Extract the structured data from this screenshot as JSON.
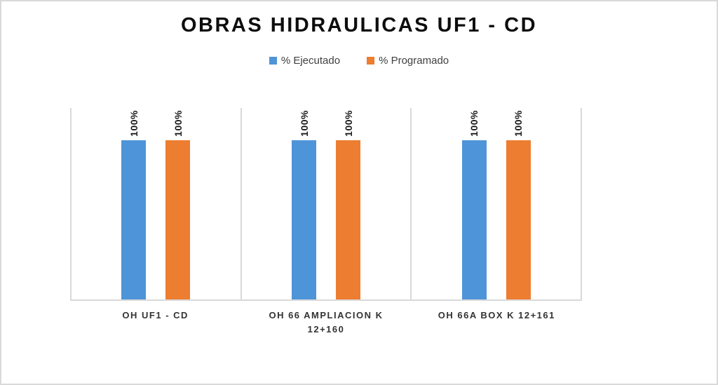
{
  "window": {
    "background": "#ffffff",
    "frame_border_color": "#d9d9d9",
    "gridline_color": "#d9d9d9"
  },
  "chart_data": {
    "type": "bar",
    "title": "OBRAS HIDRAULICAS UF1 - CD",
    "categories": [
      "OH UF1 - CD",
      "OH 66 AMPLIACION K 12+160",
      "OH 66A BOX K 12+161"
    ],
    "series": [
      {
        "name": "% Ejecutado",
        "color": "#4E94D8",
        "values": [
          100,
          100,
          100
        ],
        "data_labels": [
          "100%",
          "100%",
          "100%"
        ]
      },
      {
        "name": "% Programado",
        "color": "#ED7D31",
        "values": [
          100,
          100,
          100
        ],
        "data_labels": [
          "100%",
          "100%",
          "100%"
        ]
      }
    ],
    "value_unit": "%",
    "ylim": [
      0,
      120
    ],
    "y_axis_labels_visible": false,
    "grid": "vertical category separators only, no horizontal gridlines",
    "legend_position": "top-center",
    "data_label_style": "bold, rotated 90deg counter-clockwise, above bar"
  }
}
